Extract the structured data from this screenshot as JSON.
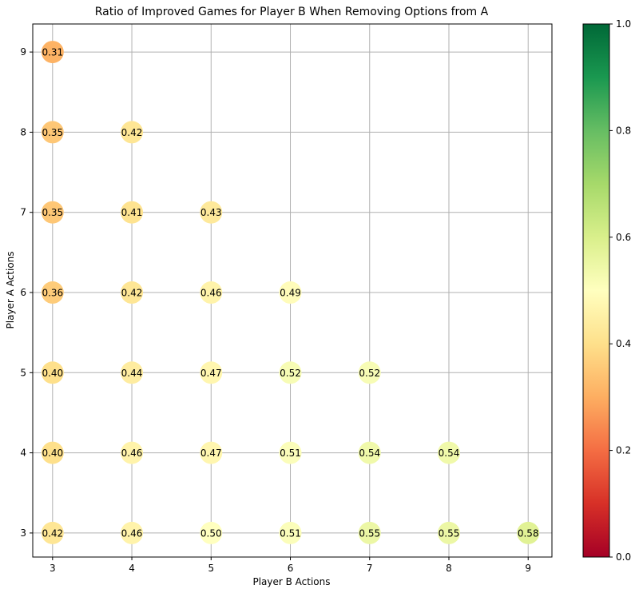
{
  "chart_data": {
    "type": "scatter",
    "title": "Ratio of Improved Games for Player B When Removing Options from A",
    "xlabel": "Player B Actions",
    "ylabel": "Player A Actions",
    "xlim": [
      2.75,
      9.3
    ],
    "ylim": [
      2.7,
      9.35
    ],
    "xticks": [
      3,
      4,
      5,
      6,
      7,
      8,
      9
    ],
    "yticks": [
      3,
      4,
      5,
      6,
      7,
      8,
      9
    ],
    "grid": true,
    "colormap": "RdYlGn",
    "colorbar": {
      "min": 0.0,
      "max": 1.0,
      "ticks": [
        "0.0",
        "0.2",
        "0.4",
        "0.6",
        "0.8",
        "1.0"
      ]
    },
    "points": [
      {
        "x": 3,
        "y": 9,
        "value": 0.31,
        "label": "0.31"
      },
      {
        "x": 3,
        "y": 8,
        "value": 0.35,
        "label": "0.35"
      },
      {
        "x": 4,
        "y": 8,
        "value": 0.42,
        "label": "0.42"
      },
      {
        "x": 3,
        "y": 7,
        "value": 0.35,
        "label": "0.35"
      },
      {
        "x": 4,
        "y": 7,
        "value": 0.41,
        "label": "0.41"
      },
      {
        "x": 5,
        "y": 7,
        "value": 0.43,
        "label": "0.43"
      },
      {
        "x": 3,
        "y": 6,
        "value": 0.36,
        "label": "0.36"
      },
      {
        "x": 4,
        "y": 6,
        "value": 0.42,
        "label": "0.42"
      },
      {
        "x": 5,
        "y": 6,
        "value": 0.46,
        "label": "0.46"
      },
      {
        "x": 6,
        "y": 6,
        "value": 0.49,
        "label": "0.49"
      },
      {
        "x": 3,
        "y": 5,
        "value": 0.4,
        "label": "0.40"
      },
      {
        "x": 4,
        "y": 5,
        "value": 0.44,
        "label": "0.44"
      },
      {
        "x": 5,
        "y": 5,
        "value": 0.47,
        "label": "0.47"
      },
      {
        "x": 6,
        "y": 5,
        "value": 0.52,
        "label": "0.52"
      },
      {
        "x": 7,
        "y": 5,
        "value": 0.52,
        "label": "0.52"
      },
      {
        "x": 3,
        "y": 4,
        "value": 0.4,
        "label": "0.40"
      },
      {
        "x": 4,
        "y": 4,
        "value": 0.46,
        "label": "0.46"
      },
      {
        "x": 5,
        "y": 4,
        "value": 0.47,
        "label": "0.47"
      },
      {
        "x": 6,
        "y": 4,
        "value": 0.51,
        "label": "0.51"
      },
      {
        "x": 7,
        "y": 4,
        "value": 0.54,
        "label": "0.54"
      },
      {
        "x": 8,
        "y": 4,
        "value": 0.54,
        "label": "0.54"
      },
      {
        "x": 3,
        "y": 3,
        "value": 0.42,
        "label": "0.42"
      },
      {
        "x": 4,
        "y": 3,
        "value": 0.46,
        "label": "0.46"
      },
      {
        "x": 5,
        "y": 3,
        "value": 0.5,
        "label": "0.50"
      },
      {
        "x": 6,
        "y": 3,
        "value": 0.51,
        "label": "0.51"
      },
      {
        "x": 7,
        "y": 3,
        "value": 0.55,
        "label": "0.55"
      },
      {
        "x": 8,
        "y": 3,
        "value": 0.55,
        "label": "0.55"
      },
      {
        "x": 9,
        "y": 3,
        "value": 0.58,
        "label": "0.58"
      }
    ]
  }
}
